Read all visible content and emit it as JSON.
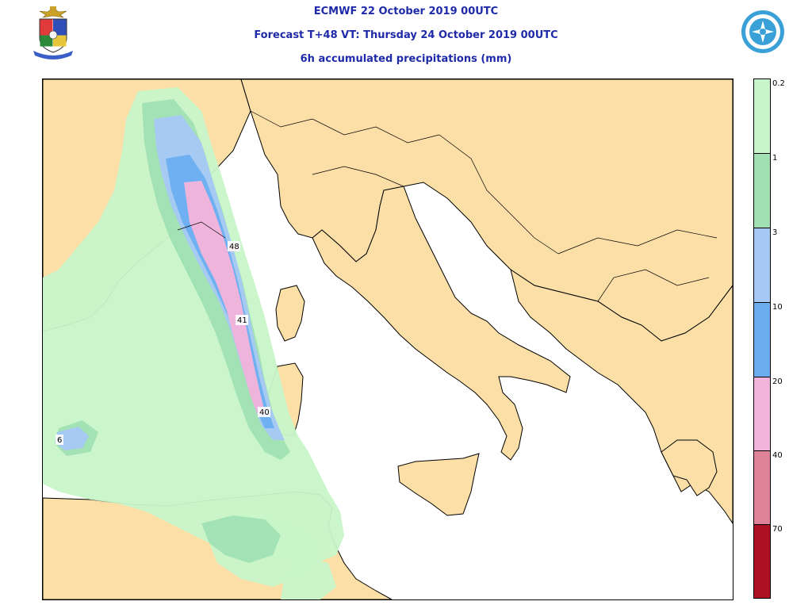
{
  "header": {
    "line1": "ECMWF 22 October 2019 00UTC",
    "line2": "Forecast T+48 VT: Thursday 24 October 2019 00UTC",
    "line3": "6h accumulated precipitations (mm)"
  },
  "logos": {
    "left": "italian-air-force-crest",
    "right": "wmo-emblem"
  },
  "map": {
    "region": "Western Mediterranean / Italy",
    "land_color": "#fbdfa7",
    "sea_color": "#ffffff",
    "labels": [
      {
        "id": "max-48",
        "text": "48"
      },
      {
        "id": "max-41",
        "text": "41"
      },
      {
        "id": "max-40",
        "text": "40"
      },
      {
        "id": "max-6",
        "text": "6"
      }
    ]
  },
  "colorbar": {
    "bands": [
      {
        "label": "0.2",
        "color": "#c8f5c9"
      },
      {
        "label": "1",
        "color": "#a0e0b3"
      },
      {
        "label": "3",
        "color": "#a6c8f5"
      },
      {
        "label": "10",
        "color": "#6aaef0"
      },
      {
        "label": "20",
        "color": "#f2b4da"
      },
      {
        "label": "40",
        "color": "#df8399"
      },
      {
        "label": "70",
        "color": "#ad1020"
      }
    ]
  }
}
